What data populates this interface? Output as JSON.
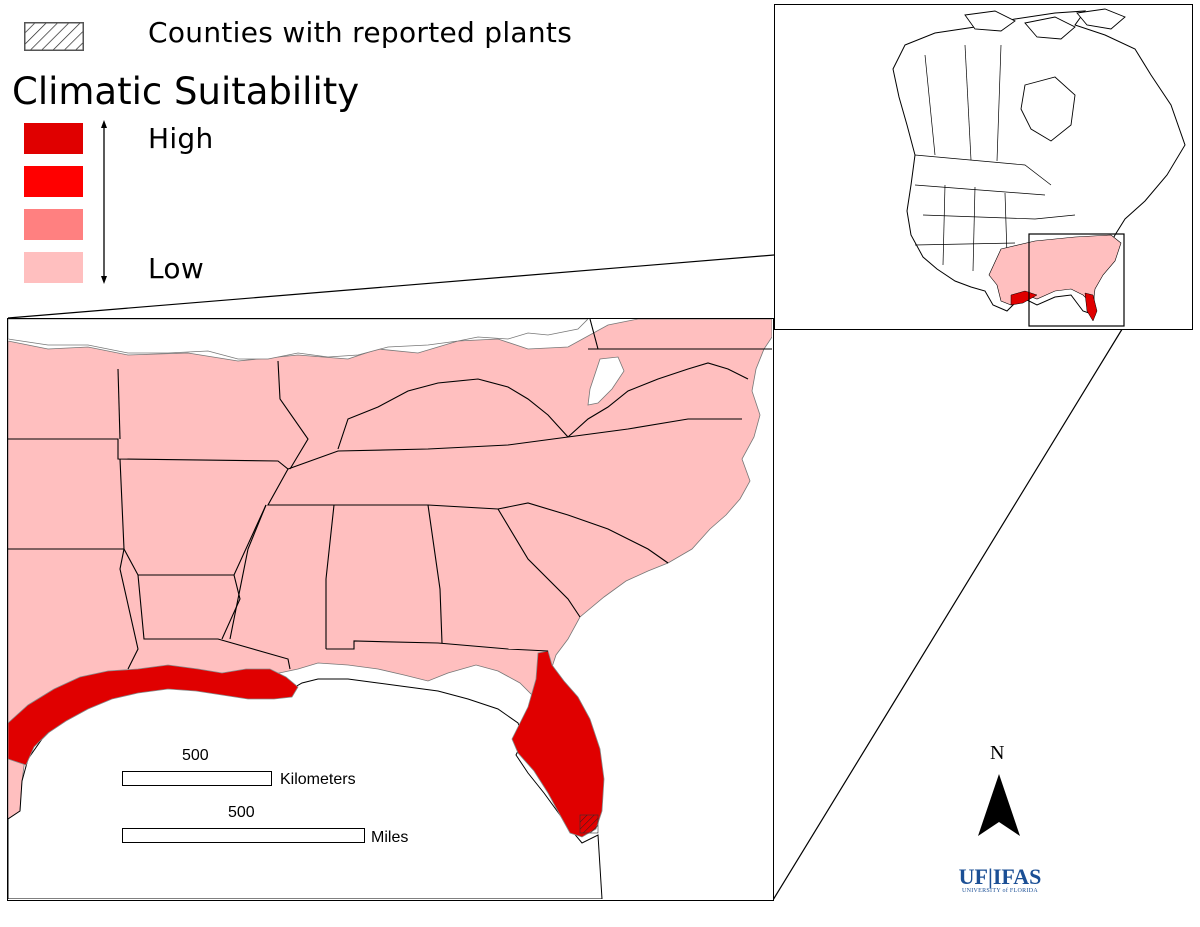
{
  "legend": {
    "hatch_label": "Counties with reported plants",
    "title": "Climatic Suitability",
    "high_label": "High",
    "low_label": "Low",
    "classes": [
      {
        "level": "high",
        "color": "#e00000"
      },
      {
        "level": "medium-high",
        "color": "#ff0000"
      },
      {
        "level": "medium-low",
        "color": "#ff8080"
      },
      {
        "level": "low",
        "color": "#ffbfbf"
      }
    ]
  },
  "scalebar": {
    "km_value": "500",
    "km_unit": "Kilometers",
    "mi_value": "500",
    "mi_unit": "Miles"
  },
  "north_arrow": {
    "label": "N"
  },
  "logo": {
    "primary": "UF|IFAS",
    "secondary": "UNIVERSITY of FLORIDA"
  },
  "colors": {
    "low_suitability": "#ffbfbf",
    "high_suitability": "#e00000",
    "unsuitable": "#ffffff",
    "boundary": "#000000",
    "logo_blue": "#1b4f95"
  }
}
